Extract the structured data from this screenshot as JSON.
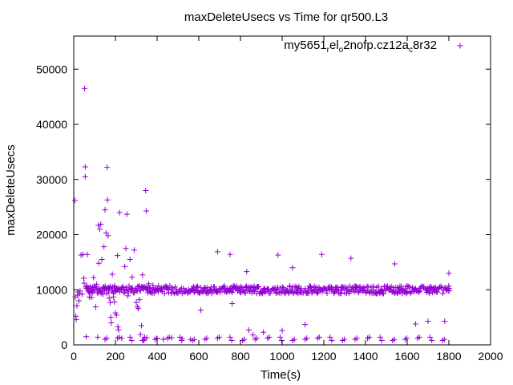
{
  "chart_data": {
    "type": "scatter",
    "title": "maxDeleteUsecs vs Time for qr500.L3",
    "xlabel": "Time(s)",
    "ylabel": "maxDeleteUsecs",
    "xlim": [
      0,
      2000
    ],
    "ylim": [
      0,
      56000
    ],
    "x_ticks": [
      0,
      200,
      400,
      600,
      800,
      1000,
      1200,
      1400,
      1600,
      1800,
      2000
    ],
    "y_ticks": [
      0,
      10000,
      20000,
      30000,
      40000,
      50000
    ],
    "grid": false,
    "legend_position": "top-right",
    "marker": "plus",
    "color": "#9400d3",
    "series": [
      {
        "name": "my5651_rel_o2nofp.cz12a_c8r32",
        "legend_parts": [
          {
            "text": "my5651",
            "sub": false
          },
          {
            "text": "r",
            "sub": true
          },
          {
            "text": "el",
            "sub": false
          },
          {
            "text": "o",
            "sub": true
          },
          {
            "text": "2nofp.cz12a",
            "sub": false
          },
          {
            "text": "c",
            "sub": true
          },
          {
            "text": "8r32",
            "sub": false
          }
        ],
        "band_main": {
          "x_start": 60,
          "x_end": 1800,
          "step": 5,
          "y_base": 10000,
          "y_jitter": 700
        },
        "band_low": {
          "x_start": 150,
          "x_end": 1800,
          "step": 60,
          "y_values": [
            1000,
            1200,
            1400,
            800
          ]
        },
        "points": [
          [
            5,
            26200
          ],
          [
            8,
            8700
          ],
          [
            10,
            5200
          ],
          [
            12,
            4600
          ],
          [
            15,
            7100
          ],
          [
            18,
            9000
          ],
          [
            20,
            9600
          ],
          [
            25,
            8000
          ],
          [
            28,
            9300
          ],
          [
            30,
            9800
          ],
          [
            35,
            16300
          ],
          [
            40,
            9200
          ],
          [
            45,
            16400
          ],
          [
            48,
            12100
          ],
          [
            50,
            11200
          ],
          [
            52,
            46500
          ],
          [
            55,
            32300
          ],
          [
            55,
            30500
          ],
          [
            58,
            10500
          ],
          [
            60,
            1500
          ],
          [
            65,
            16400
          ],
          [
            70,
            9800
          ],
          [
            75,
            8700
          ],
          [
            80,
            10200
          ],
          [
            85,
            8600
          ],
          [
            90,
            9500
          ],
          [
            95,
            12200
          ],
          [
            100,
            10000
          ],
          [
            105,
            6900
          ],
          [
            110,
            11000
          ],
          [
            115,
            1400
          ],
          [
            118,
            21700
          ],
          [
            120,
            14800
          ],
          [
            125,
            21000
          ],
          [
            130,
            21900
          ],
          [
            135,
            15500
          ],
          [
            140,
            9200
          ],
          [
            145,
            17800
          ],
          [
            150,
            24500
          ],
          [
            155,
            20300
          ],
          [
            160,
            32200
          ],
          [
            162,
            26300
          ],
          [
            165,
            19800
          ],
          [
            170,
            8500
          ],
          [
            175,
            7700
          ],
          [
            178,
            5000
          ],
          [
            180,
            4000
          ],
          [
            185,
            12800
          ],
          [
            190,
            8700
          ],
          [
            195,
            7800
          ],
          [
            200,
            5800
          ],
          [
            205,
            5400
          ],
          [
            210,
            16200
          ],
          [
            212,
            3300
          ],
          [
            215,
            2700
          ],
          [
            220,
            24000
          ],
          [
            230,
            1200
          ],
          [
            240,
            9500
          ],
          [
            245,
            14200
          ],
          [
            250,
            17500
          ],
          [
            255,
            23700
          ],
          [
            260,
            8900
          ],
          [
            270,
            15500
          ],
          [
            280,
            12300
          ],
          [
            290,
            17200
          ],
          [
            300,
            7700
          ],
          [
            305,
            6900
          ],
          [
            310,
            6600
          ],
          [
            315,
            8200
          ],
          [
            320,
            1900
          ],
          [
            325,
            3500
          ],
          [
            330,
            12700
          ],
          [
            335,
            800
          ],
          [
            340,
            1400
          ],
          [
            345,
            28000
          ],
          [
            348,
            24300
          ],
          [
            350,
            1300
          ],
          [
            360,
            11100
          ],
          [
            380,
            10800
          ],
          [
            400,
            1100
          ],
          [
            430,
            1000
          ],
          [
            470,
            1300
          ],
          [
            520,
            1100
          ],
          [
            560,
            1000
          ],
          [
            610,
            6300
          ],
          [
            690,
            16900
          ],
          [
            750,
            16400
          ],
          [
            760,
            7500
          ],
          [
            830,
            13300
          ],
          [
            840,
            2700
          ],
          [
            860,
            1800
          ],
          [
            910,
            2300
          ],
          [
            980,
            16300
          ],
          [
            1000,
            2600
          ],
          [
            1050,
            14000
          ],
          [
            1110,
            3700
          ],
          [
            1190,
            16400
          ],
          [
            1330,
            15700
          ],
          [
            1540,
            14700
          ],
          [
            1640,
            3800
          ],
          [
            1700,
            4300
          ],
          [
            1780,
            4300
          ],
          [
            1800,
            13000
          ]
        ]
      }
    ]
  }
}
